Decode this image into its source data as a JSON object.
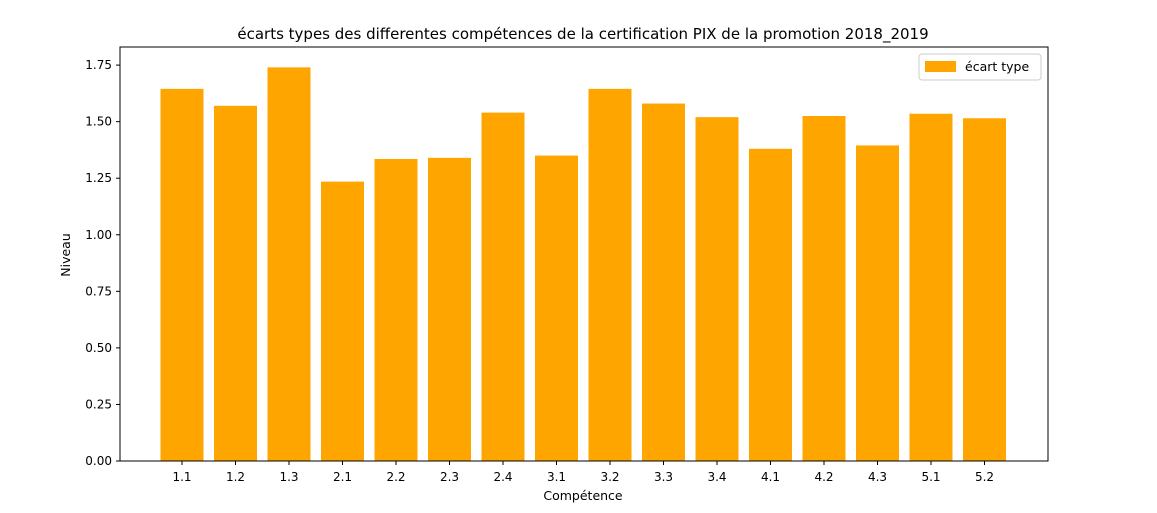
{
  "chart_data": {
    "type": "bar",
    "title": "écarts types  des differentes compétences de la certification PIX de la promotion 2018_2019",
    "xlabel": "Compétence",
    "ylabel": "Niveau",
    "categories": [
      "1.1",
      "1.2",
      "1.3",
      "2.1",
      "2.2",
      "2.3",
      "2.4",
      "3.1",
      "3.2",
      "3.3",
      "3.4",
      "4.1",
      "4.2",
      "4.3",
      "5.1",
      "5.2"
    ],
    "series": [
      {
        "name": "écart type",
        "color": "#ffa500",
        "values": [
          1.645,
          1.57,
          1.74,
          1.235,
          1.335,
          1.34,
          1.54,
          1.35,
          1.645,
          1.58,
          1.52,
          1.38,
          1.525,
          1.395,
          1.535,
          1.515
        ]
      }
    ],
    "ylim": [
      0,
      1.83
    ],
    "yticks": [
      "0.00",
      "0.25",
      "0.50",
      "0.75",
      "1.00",
      "1.25",
      "1.50",
      "1.75"
    ],
    "legend_position": "top-right",
    "grid": false
  }
}
